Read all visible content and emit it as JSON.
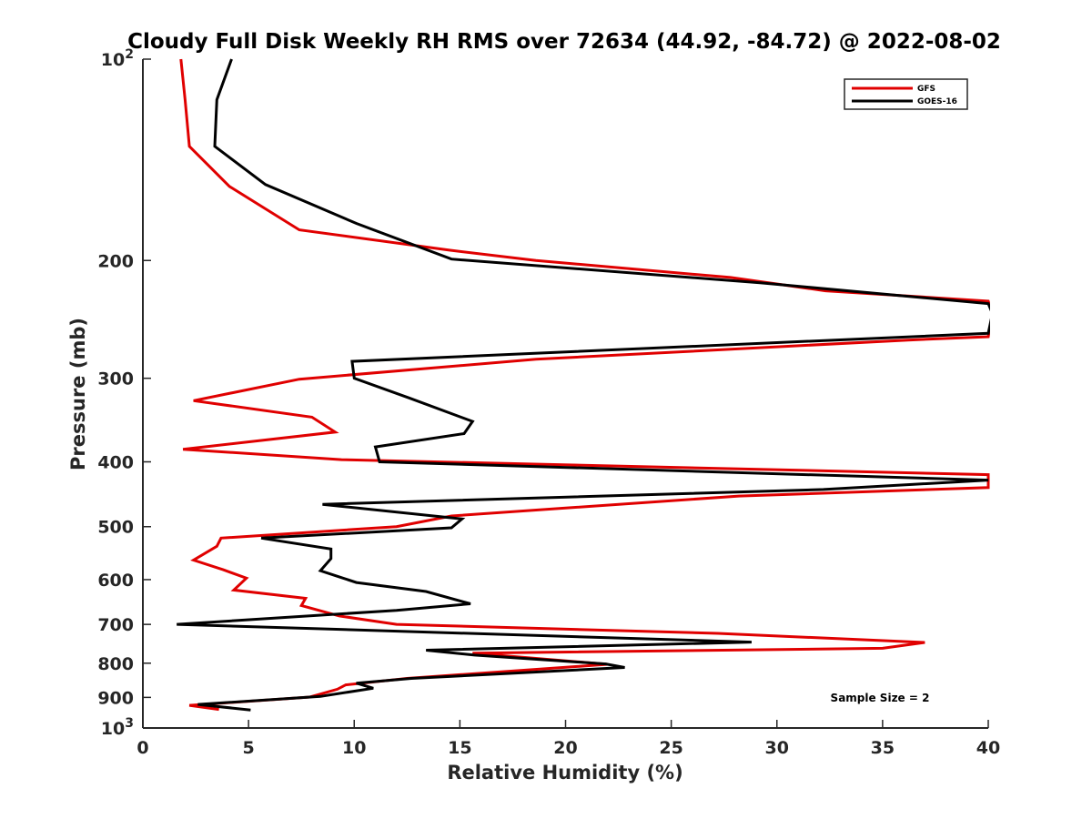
{
  "chart_data": {
    "type": "line",
    "title": "Cloudy Full Disk Weekly RH RMS over 72634 (44.92, -84.72) @ 2022-08-02",
    "xlabel": "Relative Humidity (%)",
    "ylabel": "Pressure (mb)",
    "xlim": [
      0,
      40
    ],
    "ylim": [
      100,
      1000
    ],
    "y_scale": "log",
    "y_reversed": true,
    "grid": false,
    "legend_position": "top-right",
    "x_ticks": [
      "0",
      "5",
      "10",
      "15",
      "20",
      "25",
      "30",
      "35",
      "40"
    ],
    "y_ticks": [
      {
        "value": 100,
        "base": "10",
        "exp": "2"
      },
      {
        "value": 200,
        "label": "200"
      },
      {
        "value": 300,
        "label": "300"
      },
      {
        "value": 400,
        "label": "400"
      },
      {
        "value": 500,
        "label": "500"
      },
      {
        "value": 600,
        "label": "600"
      },
      {
        "value": 700,
        "label": "700"
      },
      {
        "value": 800,
        "label": "800"
      },
      {
        "value": 900,
        "label": "900"
      },
      {
        "value": 1000,
        "base": "10",
        "exp": "3"
      }
    ],
    "annotation": "Sample Size = 2",
    "series": [
      {
        "name": "GFS",
        "color": "#e00000",
        "points": [
          [
            1.8,
            100
          ],
          [
            2.0,
            115
          ],
          [
            2.2,
            135
          ],
          [
            4.1,
            155
          ],
          [
            7.4,
            180
          ],
          [
            14.5,
            193
          ],
          [
            18.6,
            200
          ],
          [
            27.8,
            212
          ],
          [
            32.3,
            222
          ],
          [
            40.0,
            230
          ],
          [
            40.2,
            240
          ],
          [
            40.0,
            260
          ],
          [
            36.2,
            263
          ],
          [
            18.6,
            281
          ],
          [
            7.4,
            301
          ],
          [
            2.4,
            324
          ],
          [
            8.0,
            343
          ],
          [
            9.1,
            361
          ],
          [
            1.9,
            383
          ],
          [
            9.4,
            397
          ],
          [
            40.0,
            418
          ],
          [
            40.0,
            437
          ],
          [
            28.2,
            450
          ],
          [
            14.6,
            482
          ],
          [
            12.0,
            500
          ],
          [
            3.7,
            520
          ],
          [
            3.5,
            535
          ],
          [
            2.4,
            561
          ],
          [
            3.8,
            580
          ],
          [
            4.9,
            597
          ],
          [
            4.3,
            622
          ],
          [
            7.7,
            640
          ],
          [
            7.5,
            656
          ],
          [
            9.3,
            680
          ],
          [
            12.0,
            700
          ],
          [
            27.2,
            722
          ],
          [
            37.0,
            745
          ],
          [
            35.0,
            760
          ],
          [
            15.6,
            773
          ],
          [
            22.0,
            803
          ],
          [
            12.5,
            843
          ],
          [
            9.6,
            862
          ],
          [
            9.2,
            875
          ],
          [
            7.9,
            899
          ],
          [
            2.2,
            925
          ],
          [
            3.6,
            938
          ]
        ]
      },
      {
        "name": "GOES-16",
        "color": "#000000",
        "points": [
          [
            4.2,
            100
          ],
          [
            3.5,
            115
          ],
          [
            3.4,
            135
          ],
          [
            5.8,
            154
          ],
          [
            10.1,
            176
          ],
          [
            14.6,
            199
          ],
          [
            29.2,
            216
          ],
          [
            40.0,
            232
          ],
          [
            40.2,
            240
          ],
          [
            40.0,
            257
          ],
          [
            9.9,
            283
          ],
          [
            10.0,
            300
          ],
          [
            12.6,
            321
          ],
          [
            15.6,
            348
          ],
          [
            15.2,
            363
          ],
          [
            11.0,
            380
          ],
          [
            11.2,
            400
          ],
          [
            40.0,
            426
          ],
          [
            32.2,
            440
          ],
          [
            8.5,
            463
          ],
          [
            15.1,
            487
          ],
          [
            14.6,
            502
          ],
          [
            5.6,
            520
          ],
          [
            8.9,
            540
          ],
          [
            8.9,
            558
          ],
          [
            8.4,
            582
          ],
          [
            10.1,
            606
          ],
          [
            13.4,
            625
          ],
          [
            15.5,
            652
          ],
          [
            12.0,
            667
          ],
          [
            1.6,
            700
          ],
          [
            28.8,
            744
          ],
          [
            13.4,
            765
          ],
          [
            15.7,
            778
          ],
          [
            21.9,
            802
          ],
          [
            22.8,
            812
          ],
          [
            12.7,
            843
          ],
          [
            10.1,
            857
          ],
          [
            10.9,
            872
          ],
          [
            8.4,
            897
          ],
          [
            2.6,
            922
          ],
          [
            5.1,
            940
          ]
        ]
      }
    ]
  }
}
